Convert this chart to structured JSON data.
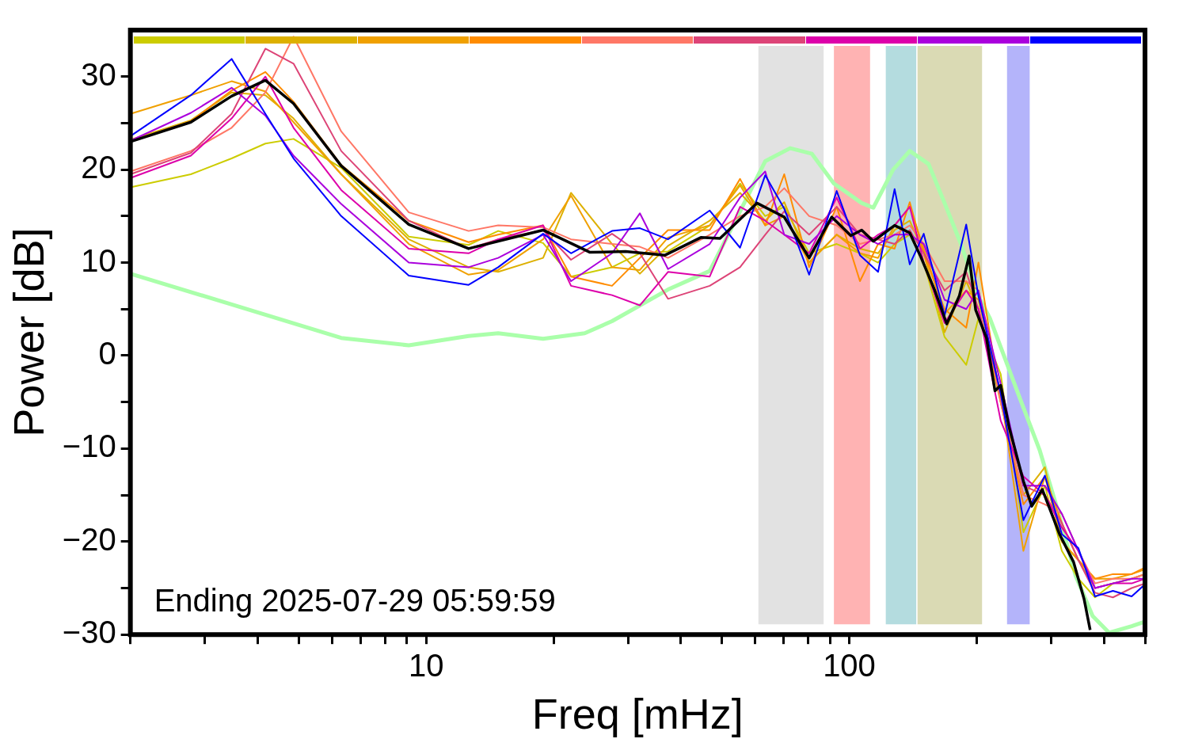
{
  "chart_data": {
    "type": "line",
    "xlabel": "Freq [mHz]",
    "ylabel": "Power [dB]",
    "log": "x",
    "xlim": [
      2,
      500
    ],
    "ylim": [
      -30,
      35
    ],
    "xticks": [
      {
        "value": 2,
        "label": null
      },
      {
        "value": 3,
        "label": null
      },
      {
        "value": 4,
        "label": null
      },
      {
        "value": 5,
        "label": null
      },
      {
        "value": 6,
        "label": null
      },
      {
        "value": 7,
        "label": null
      },
      {
        "value": 8,
        "label": null
      },
      {
        "value": 9,
        "label": null
      },
      10,
      {
        "value": 20,
        "label": null
      },
      {
        "value": 30,
        "label": null
      },
      {
        "value": 40,
        "label": null
      },
      {
        "value": 50,
        "label": null
      },
      {
        "value": 60,
        "label": null
      },
      {
        "value": 70,
        "label": null
      },
      {
        "value": 80,
        "label": null
      },
      {
        "value": 90,
        "label": null
      },
      100,
      {
        "value": 200,
        "label": null
      },
      {
        "value": 300,
        "label": null
      },
      {
        "value": 400,
        "label": null
      },
      {
        "value": 500,
        "label": null
      }
    ],
    "yticks": [
      {
        "value": -30,
        "label": "−30"
      },
      {
        "value": -25,
        "label": null
      },
      {
        "value": -20,
        "label": "−20"
      },
      {
        "value": -15,
        "label": null
      },
      {
        "value": -10,
        "label": "−10"
      },
      {
        "value": -5,
        "label": null
      },
      0,
      {
        "value": 5,
        "label": null
      },
      10,
      {
        "value": 15,
        "label": null
      },
      20,
      {
        "value": 25,
        "label": null
      },
      30
    ],
    "annotations": [
      "Ending 2025-07-29 05:59:59"
    ],
    "bands": [
      {
        "axis": "x",
        "from": 61,
        "to": 87,
        "color": "#e2e2e2"
      },
      {
        "axis": "x",
        "from": 92,
        "to": 112,
        "color": "#ffb3b3"
      },
      {
        "axis": "x",
        "from": 122,
        "to": 144,
        "color": "#b4dcdf"
      },
      {
        "axis": "x",
        "from": 145,
        "to": 206,
        "color": "#dadab4"
      },
      {
        "axis": "x",
        "from": 236,
        "to": 267,
        "color": "#b4b4fa"
      }
    ],
    "x": [
      2,
      2.78,
      3.47,
      4.17,
      4.86,
      6.3,
      9.1,
      12.6,
      14.8,
      18.9,
      22,
      27.5,
      32,
      37.3,
      46.8,
      55.2,
      63.3,
      70.2,
      80.4,
      93.4,
      106,
      117,
      128,
      139,
      150,
      168,
      189,
      202,
      228,
      258,
      290,
      318,
      348,
      381,
      420,
      465,
      500
    ],
    "series": [
      {
        "color": "#aaffaa",
        "x": [
          2,
          4.17,
          6.3,
          9.1,
          12.6,
          14.8,
          18.9,
          23.7,
          27.5,
          37.3,
          46.8,
          55.2,
          63.3,
          72.5,
          81.6,
          92,
          107,
          114,
          127,
          139,
          154,
          168,
          184,
          202,
          215,
          258,
          282,
          309,
          343,
          376,
          411,
          465,
          500
        ],
        "values": [
          8.8,
          4.4,
          1.9,
          1.1,
          2.1,
          2.4,
          1.8,
          2.4,
          3.7,
          7.1,
          9.1,
          15.5,
          20.9,
          22.3,
          21.7,
          18.5,
          16.4,
          15.9,
          20.0,
          22.0,
          20.6,
          16.4,
          11.9,
          6.4,
          4.0,
          -5.6,
          -10.2,
          -16.2,
          -23.7,
          -28.0,
          -29.8,
          -29.1,
          -28.6
        ]
      },
      {
        "color": "#cccc00",
        "values": [
          18.1,
          19.5,
          21.2,
          22.8,
          23.3,
          20.2,
          12.8,
          11.9,
          13.4,
          12.1,
          8.5,
          9.5,
          11,
          11.2,
          14.0,
          18.5,
          15,
          16,
          11,
          12,
          11,
          10,
          12,
          13,
          10,
          2.0,
          -1.0,
          4,
          -2,
          -19,
          -14,
          -21,
          -24,
          -26,
          -24.5,
          -24,
          -23.5
        ]
      },
      {
        "color": "#ddb000",
        "values": [
          23.2,
          25.3,
          28.3,
          28.0,
          25.5,
          19.5,
          12.5,
          9.5,
          9.0,
          10.5,
          17.5,
          12,
          8.8,
          11.8,
          14.5,
          17.5,
          14.5,
          16.5,
          10,
          13,
          11.5,
          11,
          13.5,
          14.5,
          11,
          2.5,
          8,
          5,
          -5,
          -15,
          -12,
          -20,
          -22,
          -25,
          -24.5,
          -24,
          -23.5
        ]
      },
      {
        "color": "#f0a000",
        "values": [
          26.0,
          28.0,
          29.5,
          28.4,
          25.1,
          19.5,
          12.0,
          8.7,
          9.2,
          12.5,
          17.2,
          9.5,
          9.2,
          12.7,
          14.0,
          18.3,
          14,
          15,
          10,
          13,
          11,
          10.5,
          14,
          16,
          11.5,
          4.5,
          7,
          6,
          -4,
          -21,
          -13,
          -20,
          -22,
          -24,
          -24,
          -23.5,
          -23
        ]
      },
      {
        "color": "#ff8c00",
        "values": [
          23.0,
          25.2,
          28.5,
          30.5,
          27.3,
          20.5,
          14.5,
          12.2,
          13.0,
          14.0,
          8.5,
          7.5,
          10.5,
          13.5,
          13.5,
          19,
          14,
          19.5,
          9.5,
          16,
          8,
          12,
          11.5,
          16.5,
          11,
          5,
          3,
          10,
          -5,
          -16,
          -13,
          -18,
          -22,
          -24,
          -23.5,
          -23.5,
          -22.8
        ]
      },
      {
        "color": "#ff7766",
        "values": [
          19.8,
          22.0,
          24.5,
          28.3,
          34.3,
          24.1,
          15.4,
          13.4,
          14.0,
          13.8,
          12.5,
          12,
          11.7,
          10.5,
          13,
          15,
          16,
          18,
          15,
          14,
          12,
          12.5,
          13,
          14,
          12,
          8,
          8,
          7,
          -5,
          -15,
          -16,
          -17,
          -21,
          -24.5,
          -24,
          -24,
          -23.5
        ]
      },
      {
        "color": "#dd4477",
        "values": [
          19.5,
          21.8,
          26.0,
          33.0,
          31.4,
          22,
          14.5,
          11.5,
          12.5,
          13.5,
          10.3,
          13.1,
          11,
          6.1,
          7.5,
          9.5,
          13,
          15.5,
          13,
          16,
          13,
          12.5,
          12,
          13.5,
          11,
          7,
          9,
          5,
          -4,
          -14,
          -15,
          -18,
          -22,
          -25.5,
          -26,
          -25,
          -24.5
        ]
      },
      {
        "color": "#dd00aa",
        "values": [
          19.1,
          21.5,
          25.5,
          30.0,
          24.5,
          17.8,
          11.5,
          11.0,
          12.5,
          14,
          7.5,
          6.5,
          5.4,
          9,
          8.5,
          16,
          14.5,
          13,
          11,
          17,
          11.5,
          13,
          14,
          16,
          10,
          3.5,
          7,
          5,
          -7,
          -13,
          -15,
          -18.5,
          -21,
          -25,
          -24.5,
          -24.5,
          -24
        ]
      },
      {
        "color": "#aa00dd",
        "values": [
          23.1,
          26.1,
          28.8,
          25.8,
          21.5,
          16.3,
          10.0,
          9.5,
          10.5,
          13.0,
          8.0,
          11,
          15.3,
          9.3,
          12,
          17,
          19.8,
          13,
          12,
          15,
          13,
          12,
          13,
          13,
          12,
          6,
          5,
          7,
          -3,
          -14,
          -14,
          -17,
          -21,
          -25,
          -24.5,
          -24,
          -24
        ]
      },
      {
        "color": "#0000ff",
        "values": [
          23.6,
          28.0,
          31.9,
          26.0,
          21.2,
          15.0,
          8.6,
          7.6,
          9.5,
          13.1,
          11,
          13.4,
          13.7,
          12.5,
          15.6,
          11.6,
          19.4,
          15.8,
          8.7,
          17.7,
          10.8,
          9.0,
          17.9,
          9.8,
          13.1,
          4.3,
          14.1,
          6.4,
          -4.1,
          -17.7,
          -12.9,
          -19.2,
          -20.7,
          -25.9,
          -25.3,
          -25.9,
          -24.6
        ]
      },
      {
        "color": "#000000",
        "x": [
          2,
          2.78,
          3.47,
          4.17,
          4.86,
          6.3,
          9.1,
          12.6,
          18.9,
          24.4,
          29.6,
          36.7,
          44.6,
          49.5,
          60.5,
          70.2,
          80.4,
          90.9,
          100.9,
          107,
          114,
          128,
          139,
          147,
          159,
          170,
          182,
          192,
          199,
          211,
          221,
          228,
          239,
          258,
          270,
          286,
          314,
          339,
          359,
          371
        ],
        "values": [
          23.0,
          25.1,
          27.9,
          29.6,
          27.1,
          20.4,
          14.1,
          11.5,
          13.5,
          11.1,
          11.2,
          10.8,
          12.7,
          12.6,
          16.4,
          14.9,
          10.5,
          14.9,
          12.9,
          13.5,
          12.3,
          14.0,
          13.2,
          10.8,
          7.1,
          3.4,
          6.4,
          10.7,
          4.9,
          1.9,
          -3.8,
          -3.2,
          -7.8,
          -13.5,
          -16.2,
          -14.4,
          -19.2,
          -22.2,
          -26.2,
          -29.5
        ]
      }
    ]
  }
}
